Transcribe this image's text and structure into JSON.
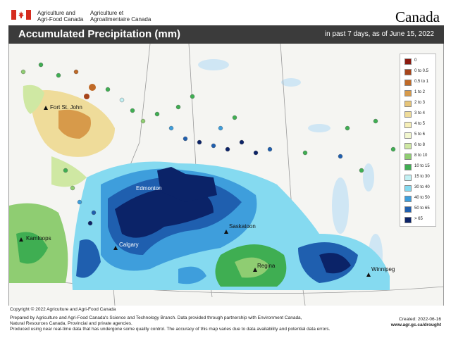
{
  "header": {
    "agency_en_line1": "Agriculture and",
    "agency_en_line2": "Agri-Food Canada",
    "agency_fr_line1": "Agriculture et",
    "agency_fr_line2": "Agroalimentaire Canada",
    "wordmark": "Canada"
  },
  "title_bar": {
    "title": "Accumulated Precipitation (mm)",
    "subtitle": "in past 7 days, as of June 15, 2022"
  },
  "legend": {
    "items": [
      {
        "label": "0",
        "color": "#8b1a10"
      },
      {
        "label": "0 to 0.5",
        "color": "#a7451b"
      },
      {
        "label": "0.5 to 1",
        "color": "#c06a27"
      },
      {
        "label": "1 to 2",
        "color": "#d79a4a"
      },
      {
        "label": "2 to 3",
        "color": "#e6c479"
      },
      {
        "label": "3 to 4",
        "color": "#efdc9a"
      },
      {
        "label": "4 to 5",
        "color": "#f6efb8"
      },
      {
        "label": "5 to 6",
        "color": "#f2f7cf"
      },
      {
        "label": "6 to 8",
        "color": "#cfe8a3"
      },
      {
        "label": "8 to 10",
        "color": "#8fcd72"
      },
      {
        "label": "10 to 15",
        "color": "#3fae52"
      },
      {
        "label": "15 to 30",
        "color": "#c3f1f4"
      },
      {
        "label": "30 to 40",
        "color": "#85daf0"
      },
      {
        "label": "40 to 50",
        "color": "#3e9edc"
      },
      {
        "label": "50 to 65",
        "color": "#1f5faf"
      },
      {
        "label": "> 65",
        "color": "#0b2368"
      }
    ]
  },
  "cities": [
    {
      "name": "Fort St. John"
    },
    {
      "name": "Edmonton"
    },
    {
      "name": "Kamloops"
    },
    {
      "name": "Calgary"
    },
    {
      "name": "Saskatoon"
    },
    {
      "name": "Regina"
    },
    {
      "name": "Winnipeg"
    }
  ],
  "footer": {
    "copyright": "Copyright © 2022 Agriculture and Agri-Food Canada",
    "credits_line1": "Prepared by Agriculture and Agri-Food Canada's Science and Technology Branch. Data provided through partnership with Environment Canada,",
    "credits_line2": "Natural Resources Canada, Provincial and private agencies.",
    "credits_line3": "Produced using near real-time data that has undergone some quality control. The accuracy of this map varies due to data availability and potential data errors.",
    "created": "Created: 2022-06-16",
    "url": "www.agr.gc.ca/drought"
  }
}
